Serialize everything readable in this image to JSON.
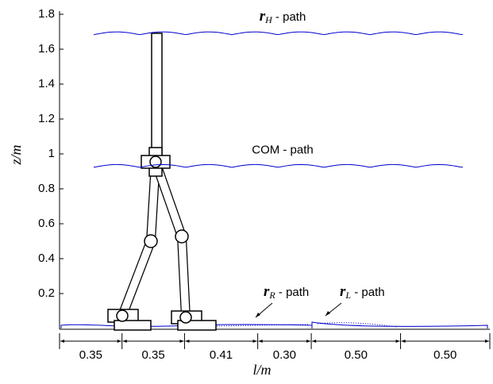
{
  "chart_data": {
    "type": "walking-gait",
    "ylabel": "z/m",
    "xlabel": "l/m",
    "ylim": [
      0,
      1.8
    ],
    "yticks": [
      0.2,
      0.4,
      0.6,
      0.8,
      1,
      1.2,
      1.4,
      1.6,
      1.8
    ],
    "paths": [
      {
        "symbol": "r",
        "subscript": "H",
        "text": " - path",
        "level": 1.69,
        "color": "#0000cc"
      },
      {
        "text": "COM - path",
        "level": 0.93,
        "color": "#0000cc"
      }
    ],
    "foot_labels": [
      {
        "symbol": "r",
        "subscript": "R",
        "text": " - path"
      },
      {
        "symbol": "r",
        "subscript": "L",
        "text": " - path"
      }
    ],
    "steps": [
      0.35,
      0.35,
      0.41,
      {
        "value": 0.3,
        "label": "0.30"
      },
      {
        "value": 0.5,
        "label": "0.50"
      },
      {
        "value": 0.5,
        "label": "0.50"
      }
    ]
  }
}
